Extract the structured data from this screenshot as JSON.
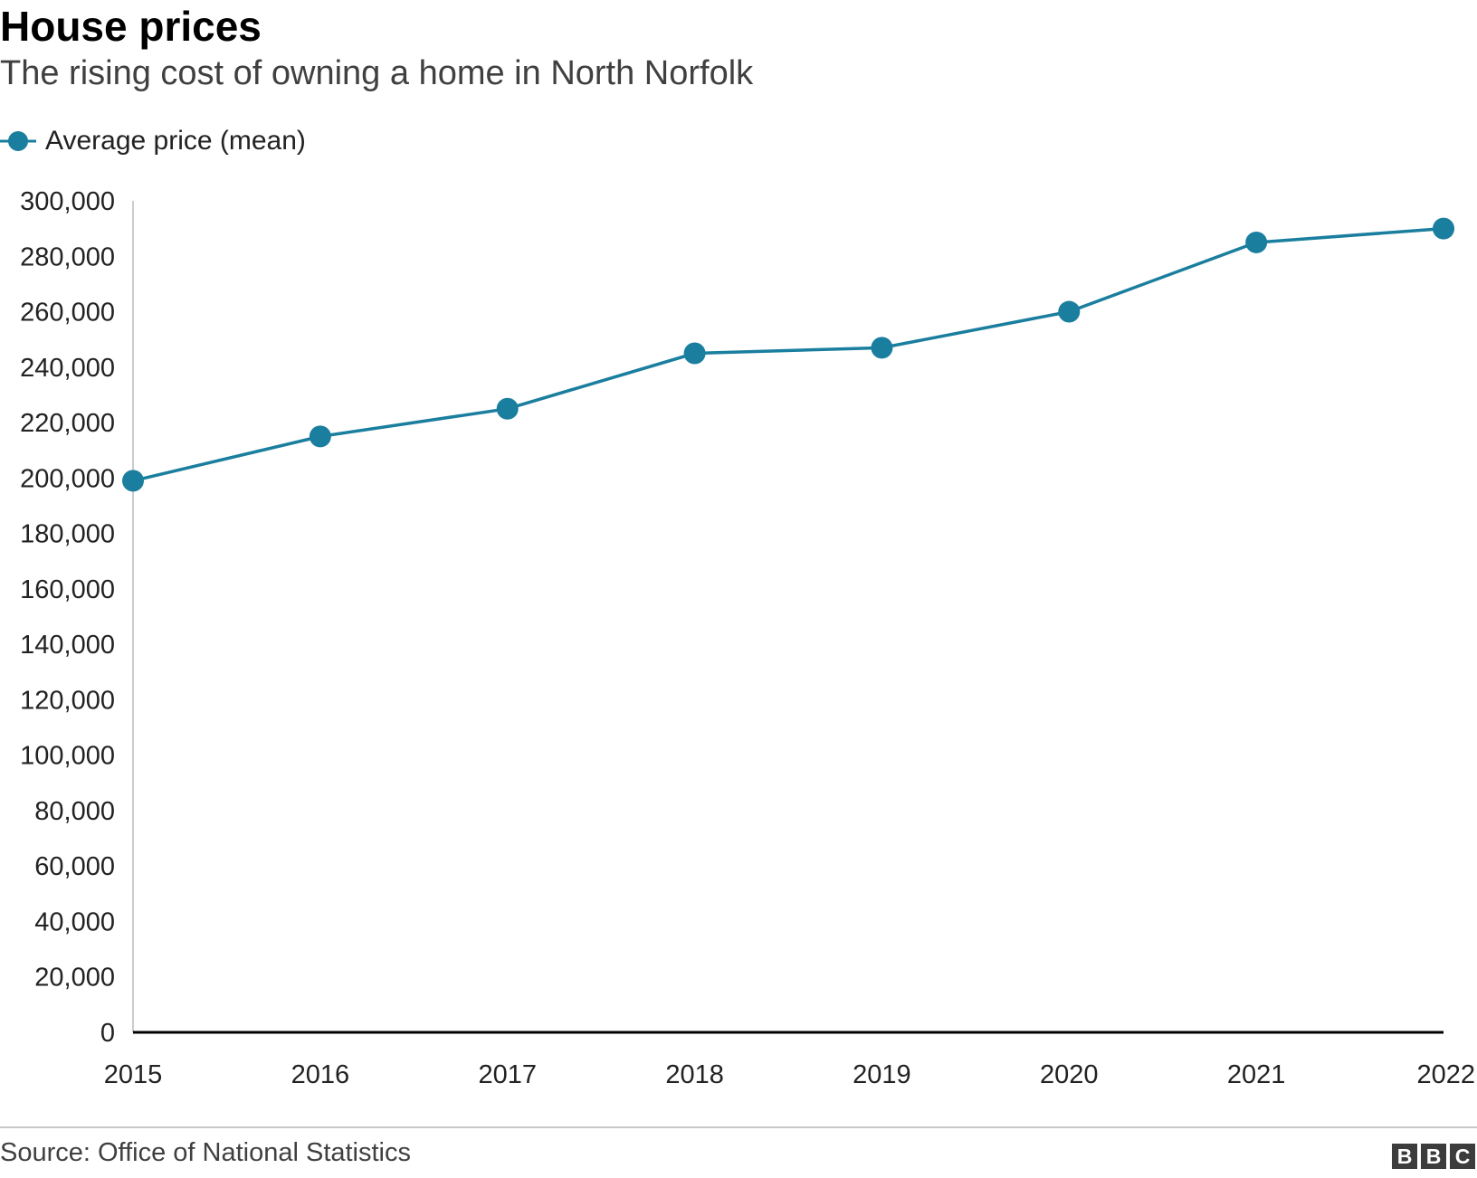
{
  "header": {
    "title": "House prices",
    "subtitle": "The rising cost of owning a home in North Norfolk"
  },
  "legend": {
    "label": "Average price (mean)"
  },
  "colors": {
    "series": "#1a7e9e",
    "axis": "#000000",
    "gridline": "#cccccc"
  },
  "chart_data": {
    "type": "line",
    "title": "House prices",
    "subtitle": "The rising cost of owning a home in North Norfolk",
    "xlabel": "",
    "ylabel": "",
    "x": [
      "2015",
      "2016",
      "2017",
      "2018",
      "2019",
      "2020",
      "2021",
      "2022"
    ],
    "series": [
      {
        "name": "Average price (mean)",
        "values": [
          199000,
          215000,
          225000,
          245000,
          247000,
          260000,
          285000,
          290000
        ]
      }
    ],
    "ylim": [
      0,
      300000
    ],
    "yticks": [
      0,
      20000,
      40000,
      60000,
      80000,
      100000,
      120000,
      140000,
      160000,
      180000,
      200000,
      220000,
      240000,
      260000,
      280000,
      300000
    ],
    "ytick_labels": [
      "0",
      "20,000",
      "40,000",
      "60,000",
      "80,000",
      "100,000",
      "120,000",
      "140,000",
      "160,000",
      "180,000",
      "200,000",
      "220,000",
      "240,000",
      "260,000",
      "280,000",
      "300,000"
    ],
    "grid": false,
    "legend_position": "top-left"
  },
  "footer": {
    "source": "Source: Office of National Statistics",
    "logo_letters": [
      "B",
      "B",
      "C"
    ]
  }
}
